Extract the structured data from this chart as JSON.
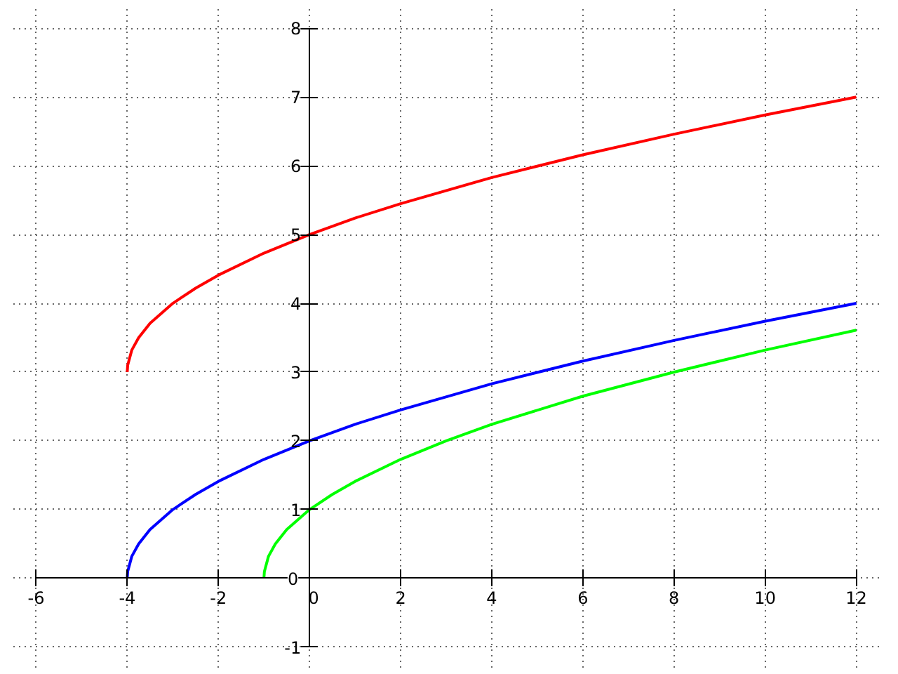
{
  "chart_data": {
    "type": "line",
    "xlim": [
      -6,
      12
    ],
    "ylim": [
      -1,
      8
    ],
    "xticks": [
      -6,
      -4,
      -2,
      0,
      2,
      4,
      6,
      8,
      10,
      12
    ],
    "yticks": [
      -1,
      0,
      1,
      2,
      3,
      4,
      5,
      6,
      7,
      8
    ],
    "grid": true,
    "marker": "none",
    "line_style": "solid",
    "series": [
      {
        "color": "#ff0000",
        "x": [
          -4,
          -3.99,
          -3.9,
          -3.75,
          -3.5,
          -3,
          -2.5,
          -2,
          -1,
          0,
          1,
          2,
          4,
          6,
          8,
          10,
          12
        ],
        "values": [
          3,
          3.1,
          3.32,
          3.5,
          3.71,
          4,
          4.22,
          4.41,
          4.73,
          5,
          5.24,
          5.45,
          5.83,
          6.16,
          6.46,
          6.74,
          7
        ]
      },
      {
        "color": "#0000ff",
        "x": [
          -4,
          -3.99,
          -3.9,
          -3.75,
          -3.5,
          -3,
          -2.5,
          -2,
          -1,
          0,
          1,
          2,
          4,
          6,
          8,
          10,
          12
        ],
        "values": [
          0,
          0.1,
          0.32,
          0.5,
          0.71,
          1,
          1.22,
          1.41,
          1.73,
          2,
          2.24,
          2.45,
          2.83,
          3.16,
          3.46,
          3.74,
          4
        ]
      },
      {
        "color": "#00ff00",
        "x": [
          -1,
          -0.99,
          -0.9,
          -0.75,
          -0.5,
          0,
          0.5,
          1,
          2,
          3,
          4,
          6,
          8,
          10,
          12
        ],
        "values": [
          0,
          0.1,
          0.32,
          0.5,
          0.71,
          1,
          1.22,
          1.41,
          1.73,
          2,
          2.24,
          2.65,
          3,
          3.32,
          3.61
        ]
      }
    ]
  }
}
